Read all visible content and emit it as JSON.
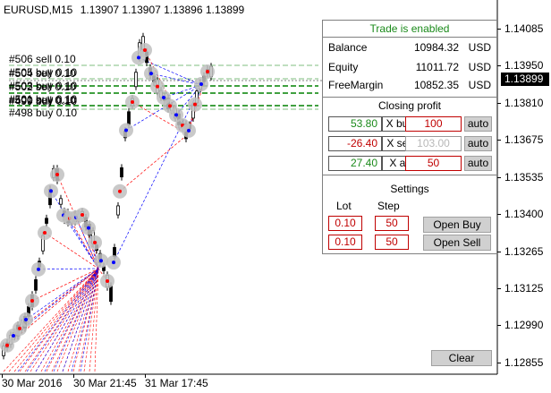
{
  "chart": {
    "symbol_tf": "EURUSD,M15",
    "ohlc": "1.13907 1.13907 1.13896 1.13899",
    "current_price": "1.13899"
  },
  "price_axis": [
    "1.14085",
    "1.13950",
    "1.13810",
    "1.13675",
    "1.13535",
    "1.13400",
    "1.13265",
    "1.13125",
    "1.12990",
    "1.12855"
  ],
  "time_axis": [
    "30 Mar 2016",
    "30 Mar 21:45",
    "31 Mar 17:45"
  ],
  "order_labels": [
    "#506 sell 0.10",
    "#505 buy 0.10",
    "#504 sell 0.10",
    "#503 buy 0.10",
    "#502 sell 0.10",
    "#501 buy 0.10",
    "#500 sell 0.10",
    "#499 buy 0.10",
    "#498 buy 0.10"
  ],
  "panel": {
    "status": "Trade is enabled",
    "balance_label": "Balance",
    "balance_value": "10984.32",
    "equity_label": "Equity",
    "equity_value": "11011.72",
    "freemargin_label": "FreeMargin",
    "freemargin_value": "10852.35",
    "currency": "USD",
    "closing_title": "Closing profit",
    "rows": [
      {
        "profit": "53.80",
        "button": "X buy",
        "input": "100",
        "auto": "auto"
      },
      {
        "profit": "-26.40",
        "button": "X sell",
        "input": "103.00",
        "auto": "auto"
      },
      {
        "profit": "27.40",
        "button": "X all",
        "input": "50",
        "auto": "auto"
      }
    ],
    "settings_title": "Settings",
    "lot_label": "Lot",
    "step_label": "Step",
    "lot_buy": "0.10",
    "step_buy": "50",
    "lot_sell": "0.10",
    "step_sell": "50",
    "open_buy": "Open Buy",
    "open_sell": "Open Sell"
  },
  "clear_label": "Clear",
  "colors": {
    "buy": "#0000ff",
    "sell": "#ff0000",
    "status": "#1a8a1a",
    "level_line": "#008000"
  }
}
